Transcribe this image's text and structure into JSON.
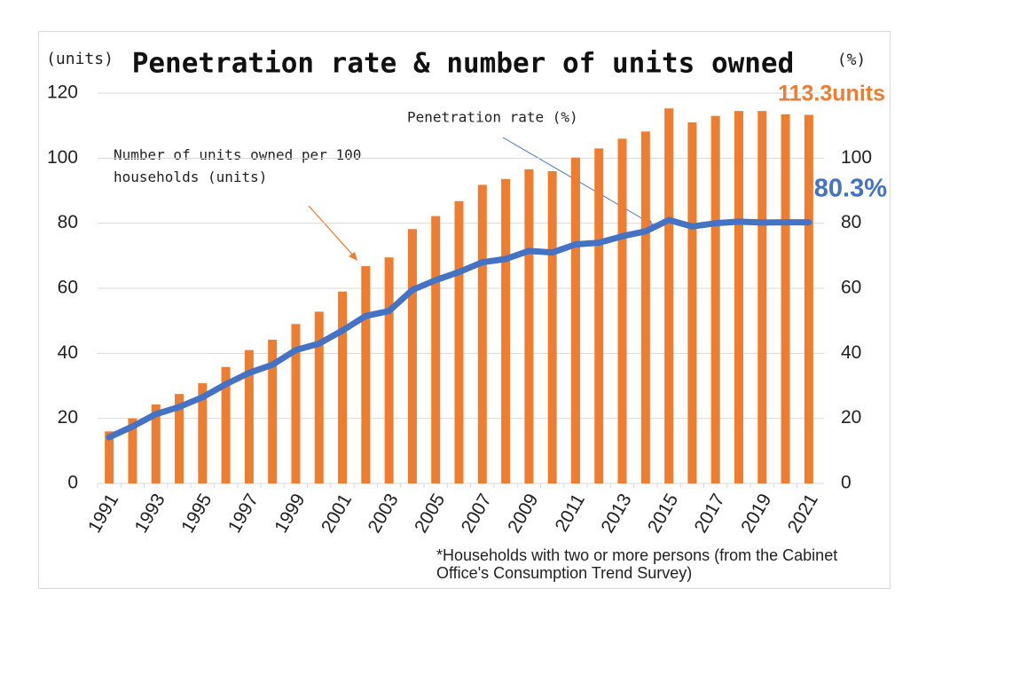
{
  "chart_data": {
    "type": "bar-line",
    "title": "Penetration rate & number of units owned",
    "y_label": "(units)",
    "y2_label": "(%)",
    "categories": [
      "1991",
      null,
      "1993",
      null,
      "1995",
      null,
      "1997",
      null,
      "1999",
      null,
      "2001",
      null,
      "2003",
      null,
      "2005",
      null,
      "2007",
      null,
      "2009",
      null,
      "2011",
      null,
      "2013",
      null,
      "2015",
      null,
      "2017",
      null,
      "2019",
      null,
      "2021"
    ],
    "series": [
      {
        "name": "Number of units owned per 100 households (units)",
        "type": "bar",
        "color": "#ed7d31",
        "values": [
          16,
          20,
          24.3,
          27.5,
          30.8,
          35.8,
          41,
          44.2,
          49,
          52.8,
          59,
          66.8,
          69.5,
          78.2,
          82.2,
          86.8,
          91.8,
          93.6,
          96.6,
          96,
          100.2,
          103,
          106,
          108.2,
          115.3,
          111,
          113,
          114.5,
          114.5,
          113.5,
          113.3
        ],
        "value_labels": [
          null,
          null,
          null,
          null,
          null,
          null,
          null,
          null,
          null,
          null,
          null,
          null,
          null,
          null,
          null,
          null,
          null,
          null,
          null,
          null,
          null,
          null,
          null,
          null,
          null,
          null,
          null,
          null,
          null,
          null,
          "113.3units"
        ]
      },
      {
        "name": "Penetration rate (%)",
        "type": "line",
        "color": "#4472c4",
        "axis": "y2",
        "values": [
          14.2,
          17.5,
          21.3,
          23.5,
          26.5,
          30.5,
          34,
          36.5,
          41,
          43,
          47,
          51.5,
          53,
          59.5,
          62.5,
          65,
          68,
          69,
          71.5,
          71,
          73.5,
          74,
          76,
          77.5,
          81,
          79,
          80,
          80.5,
          80.2,
          80.3,
          80.3
        ],
        "value_labels": [
          null,
          null,
          null,
          null,
          null,
          null,
          null,
          null,
          null,
          null,
          null,
          null,
          null,
          null,
          null,
          null,
          null,
          null,
          null,
          null,
          null,
          null,
          null,
          null,
          null,
          null,
          null,
          null,
          null,
          null,
          "80.3%"
        ]
      }
    ],
    "ylim": [
      0,
      120
    ],
    "yticks": [
      0,
      20,
      40,
      60,
      80,
      100,
      120
    ],
    "y2lim": [
      0,
      120
    ],
    "y2ticks": [
      0,
      20,
      40,
      60,
      80,
      100
    ],
    "grid": true,
    "annotations": {
      "units": [
        "Number of units owned per 100",
        "households (units)"
      ],
      "rate": [
        "Penetration rate (%)"
      ],
      "note": [
        "*Households with two or more persons (from the Cabinet",
        "Office's Consumption Trend Survey)"
      ]
    }
  }
}
